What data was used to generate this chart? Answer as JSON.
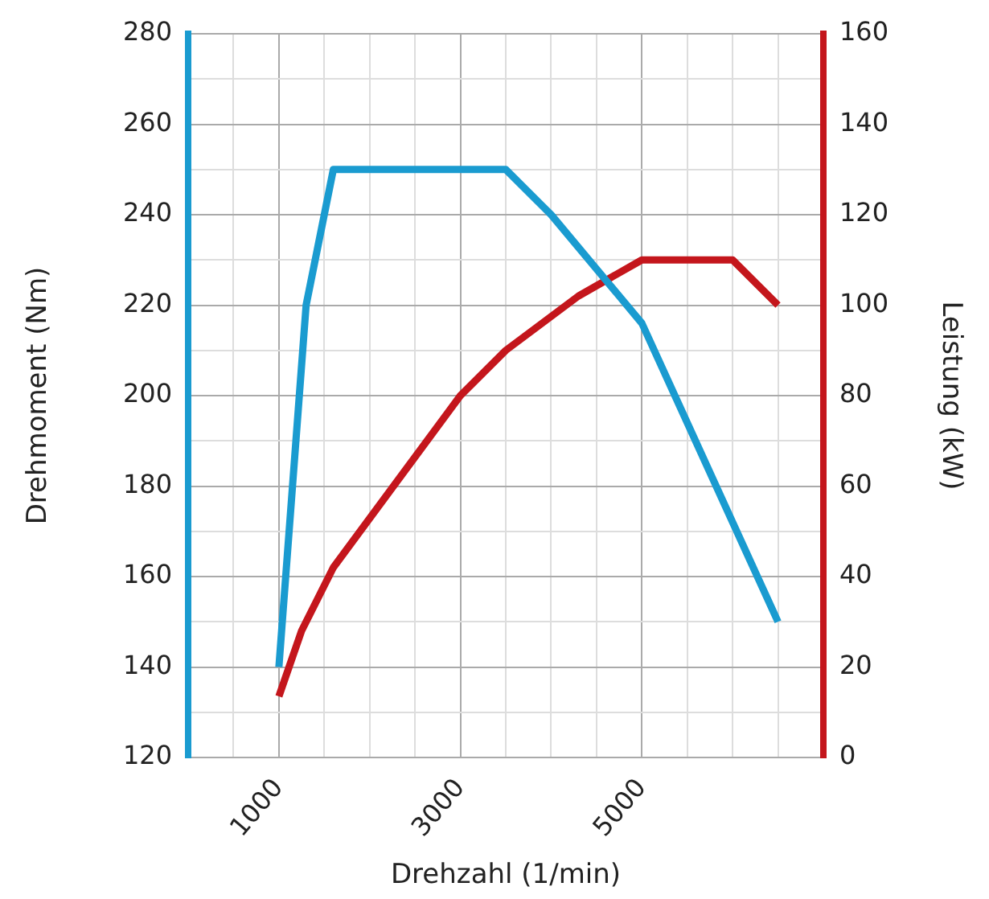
{
  "chart_data": {
    "type": "line",
    "xlabel": "Drehzahl (1/min)",
    "ylabel": "Drehmoment (Nm)",
    "y2label": "Leistung (kW)",
    "xlim": [
      0,
      7000
    ],
    "xticks": [
      {
        "value": 500,
        "label": null
      },
      1000,
      {
        "value": 1500,
        "label": null
      },
      {
        "value": 2000,
        "label": null
      },
      {
        "value": 2500,
        "label": null
      },
      3000,
      {
        "value": 3500,
        "label": null
      },
      {
        "value": 4000,
        "label": null
      },
      {
        "value": 4500,
        "label": null
      },
      5000,
      {
        "value": 5500,
        "label": null
      },
      {
        "value": 6000,
        "label": null
      },
      {
        "value": 6500,
        "label": null
      }
    ],
    "ylim": [
      120,
      280
    ],
    "yticks": [
      120,
      {
        "value": 130,
        "label": null
      },
      140,
      {
        "value": 150,
        "label": null
      },
      160,
      {
        "value": 170,
        "label": null
      },
      180,
      {
        "value": 190,
        "label": null
      },
      200,
      {
        "value": 210,
        "label": null
      },
      220,
      {
        "value": 230,
        "label": null
      },
      240,
      {
        "value": 250,
        "label": null
      },
      260,
      {
        "value": 270,
        "label": null
      },
      280
    ],
    "y2lim": [
      0,
      160
    ],
    "y2ticks": [
      0,
      20,
      40,
      60,
      80,
      100,
      120,
      140,
      160
    ],
    "grid": true,
    "legend": false,
    "marker": "none",
    "line_style": "solid",
    "series": [
      {
        "color": "#1a9bd0",
        "x": [
          1000,
          1300,
          1600,
          3500,
          4000,
          5000,
          6500
        ],
        "values": [
          140,
          220,
          250,
          250,
          240,
          216,
          150
        ]
      },
      {
        "color": "#c4161c",
        "axis": "y2",
        "x": [
          1000,
          1250,
          1600,
          3000,
          3500,
          4300,
          5000,
          6000,
          6500
        ],
        "values": [
          13.5,
          28,
          42,
          80,
          90,
          102,
          110,
          110,
          100
        ]
      }
    ]
  }
}
